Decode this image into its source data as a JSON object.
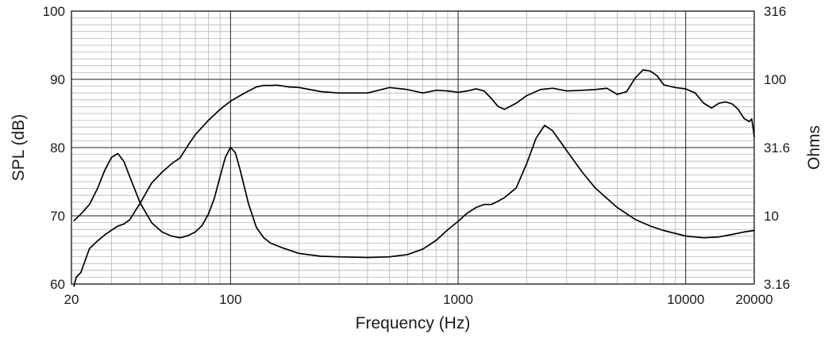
{
  "chart_data": {
    "type": "line",
    "title": "",
    "xlabel": "Frequency (Hz)",
    "ylabel_left": "SPL (dB)",
    "ylabel_right": "Ohms",
    "x_scale": "log",
    "xlim": [
      20,
      20000
    ],
    "ylim_left": [
      60,
      100
    ],
    "ylim_right": [
      3.16,
      316
    ],
    "y_right_scale": "log",
    "grid": true,
    "legend": "none",
    "x_ticks": [
      {
        "value": 20,
        "label": "20"
      },
      {
        "value": 100,
        "label": "100"
      },
      {
        "value": 1000,
        "label": "1000"
      },
      {
        "value": 10000,
        "label": "10000"
      },
      {
        "value": 20000,
        "label": "20000"
      }
    ],
    "y_left_ticks": [
      {
        "value": 60,
        "label": "60"
      },
      {
        "value": 70,
        "label": "70"
      },
      {
        "value": 80,
        "label": "80"
      },
      {
        "value": 90,
        "label": "90"
      },
      {
        "value": 100,
        "label": "100"
      }
    ],
    "y_right_ticks": [
      {
        "value": 3.16,
        "label": "3.16"
      },
      {
        "value": 10,
        "label": "10"
      },
      {
        "value": 31.6,
        "label": "31.6"
      },
      {
        "value": 100,
        "label": "100"
      },
      {
        "value": 316,
        "label": "316"
      }
    ],
    "series": [
      {
        "axis": "left",
        "color": "#000000",
        "points": [
          [
            20.5,
            59.7
          ],
          [
            21,
            61
          ],
          [
            22,
            61.7
          ],
          [
            23,
            63.5
          ],
          [
            24,
            65.2
          ],
          [
            26,
            66.3
          ],
          [
            28,
            67.2
          ],
          [
            30,
            67.9
          ],
          [
            32,
            68.5
          ],
          [
            34,
            68.8
          ],
          [
            36,
            69.4
          ],
          [
            40,
            71.8
          ],
          [
            45,
            74.8
          ],
          [
            50,
            76.4
          ],
          [
            55,
            77.6
          ],
          [
            60,
            78.5
          ],
          [
            65,
            80.3
          ],
          [
            70,
            81.9
          ],
          [
            80,
            84
          ],
          [
            90,
            85.6
          ],
          [
            100,
            86.8
          ],
          [
            110,
            87.6
          ],
          [
            120,
            88.3
          ],
          [
            130,
            88.9
          ],
          [
            140,
            89.1
          ],
          [
            150,
            89.1
          ],
          [
            160,
            89.15
          ],
          [
            180,
            88.9
          ],
          [
            200,
            88.8
          ],
          [
            250,
            88.2
          ],
          [
            300,
            88
          ],
          [
            400,
            88
          ],
          [
            500,
            88.8
          ],
          [
            600,
            88.5
          ],
          [
            700,
            88
          ],
          [
            800,
            88.4
          ],
          [
            900,
            88.3
          ],
          [
            1000,
            88.1
          ],
          [
            1100,
            88.3
          ],
          [
            1200,
            88.6
          ],
          [
            1300,
            88.3
          ],
          [
            1400,
            87.2
          ],
          [
            1500,
            86
          ],
          [
            1600,
            85.6
          ],
          [
            1800,
            86.5
          ],
          [
            2000,
            87.6
          ],
          [
            2300,
            88.5
          ],
          [
            2600,
            88.7
          ],
          [
            3000,
            88.3
          ],
          [
            3500,
            88.4
          ],
          [
            4000,
            88.5
          ],
          [
            4500,
            88.7
          ],
          [
            5000,
            87.8
          ],
          [
            5500,
            88.2
          ],
          [
            6000,
            90.2
          ],
          [
            6500,
            91.4
          ],
          [
            7000,
            91.2
          ],
          [
            7500,
            90.5
          ],
          [
            8000,
            89.2
          ],
          [
            9000,
            88.8
          ],
          [
            10000,
            88.6
          ],
          [
            11000,
            88
          ],
          [
            12000,
            86.5
          ],
          [
            13000,
            85.8
          ],
          [
            14000,
            86.5
          ],
          [
            15000,
            86.7
          ],
          [
            16000,
            86.4
          ],
          [
            17000,
            85.6
          ],
          [
            18000,
            84.3
          ],
          [
            19000,
            83.8
          ],
          [
            19500,
            84.2
          ],
          [
            19800,
            82.8
          ],
          [
            20000,
            81.6
          ]
        ]
      },
      {
        "axis": "right",
        "color": "#000000",
        "points": [
          [
            20.5,
            9.2
          ],
          [
            22,
            10.3
          ],
          [
            24,
            12.1
          ],
          [
            26,
            15.8
          ],
          [
            28,
            21.5
          ],
          [
            30,
            26.8
          ],
          [
            32,
            28.6
          ],
          [
            34,
            25
          ],
          [
            36,
            19.5
          ],
          [
            40,
            12.5
          ],
          [
            45,
            8.9
          ],
          [
            50,
            7.6
          ],
          [
            55,
            7.1
          ],
          [
            60,
            6.9
          ],
          [
            65,
            7.15
          ],
          [
            70,
            7.6
          ],
          [
            75,
            8.5
          ],
          [
            80,
            10.3
          ],
          [
            85,
            13.5
          ],
          [
            90,
            19.5
          ],
          [
            95,
            27
          ],
          [
            100,
            31.7
          ],
          [
            105,
            29
          ],
          [
            110,
            22
          ],
          [
            120,
            12.2
          ],
          [
            130,
            8.2
          ],
          [
            140,
            6.9
          ],
          [
            150,
            6.3
          ],
          [
            170,
            5.8
          ],
          [
            200,
            5.3
          ],
          [
            250,
            5.05
          ],
          [
            300,
            5
          ],
          [
            400,
            4.95
          ],
          [
            500,
            5
          ],
          [
            600,
            5.2
          ],
          [
            700,
            5.7
          ],
          [
            800,
            6.6
          ],
          [
            900,
            7.9
          ],
          [
            1000,
            9.1
          ],
          [
            1100,
            10.5
          ],
          [
            1200,
            11.5
          ],
          [
            1300,
            12.1
          ],
          [
            1400,
            12.1
          ],
          [
            1500,
            12.8
          ],
          [
            1600,
            13.6
          ],
          [
            1800,
            16
          ],
          [
            2000,
            24
          ],
          [
            2200,
            37
          ],
          [
            2400,
            46
          ],
          [
            2600,
            42
          ],
          [
            3000,
            30
          ],
          [
            3500,
            21
          ],
          [
            4000,
            16
          ],
          [
            5000,
            11.5
          ],
          [
            6000,
            9.4
          ],
          [
            7000,
            8.4
          ],
          [
            8000,
            7.8
          ],
          [
            10000,
            7.1
          ],
          [
            12000,
            6.9
          ],
          [
            14000,
            7.0
          ],
          [
            16000,
            7.3
          ],
          [
            18000,
            7.6
          ],
          [
            20000,
            7.8
          ]
        ]
      }
    ]
  }
}
